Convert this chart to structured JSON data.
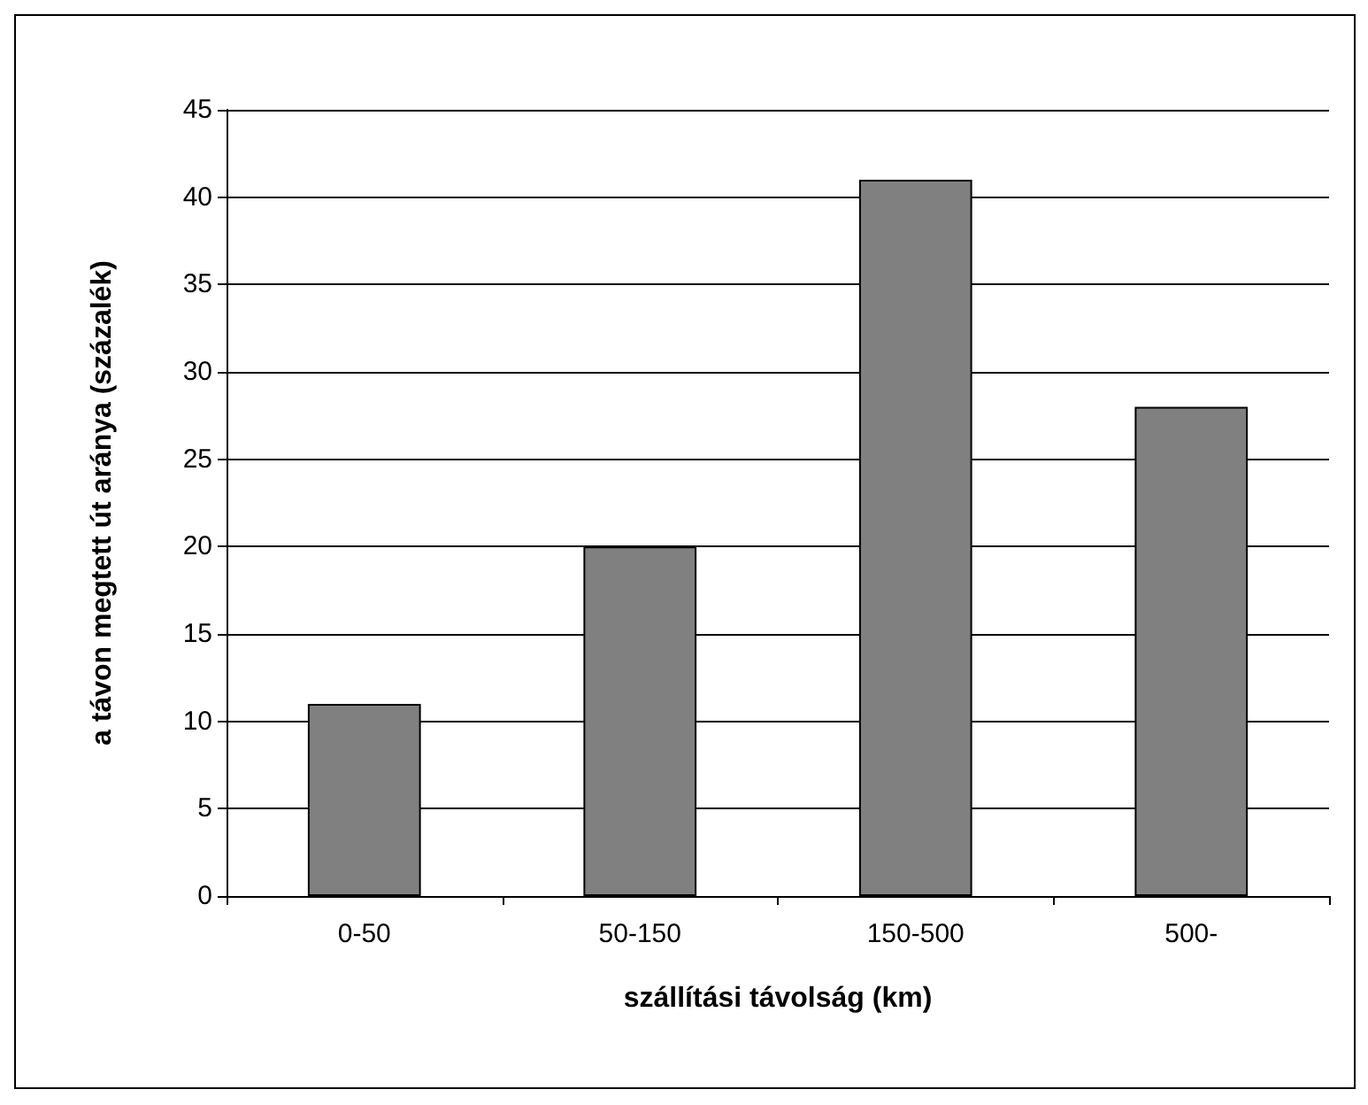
{
  "chart_data": {
    "type": "bar",
    "xlabel": "szállítási távolság (km)",
    "ylabel": "a távon megtett út aránya (százalék)",
    "categories": [
      "0-50",
      "50-150",
      "150-500",
      "500-"
    ],
    "values": [
      11,
      20,
      41,
      28
    ],
    "color": "#808080",
    "ylim": [
      0,
      45
    ],
    "yticks": [
      0,
      5,
      10,
      15,
      20,
      25,
      30,
      35,
      40,
      45
    ],
    "grid": "y"
  }
}
